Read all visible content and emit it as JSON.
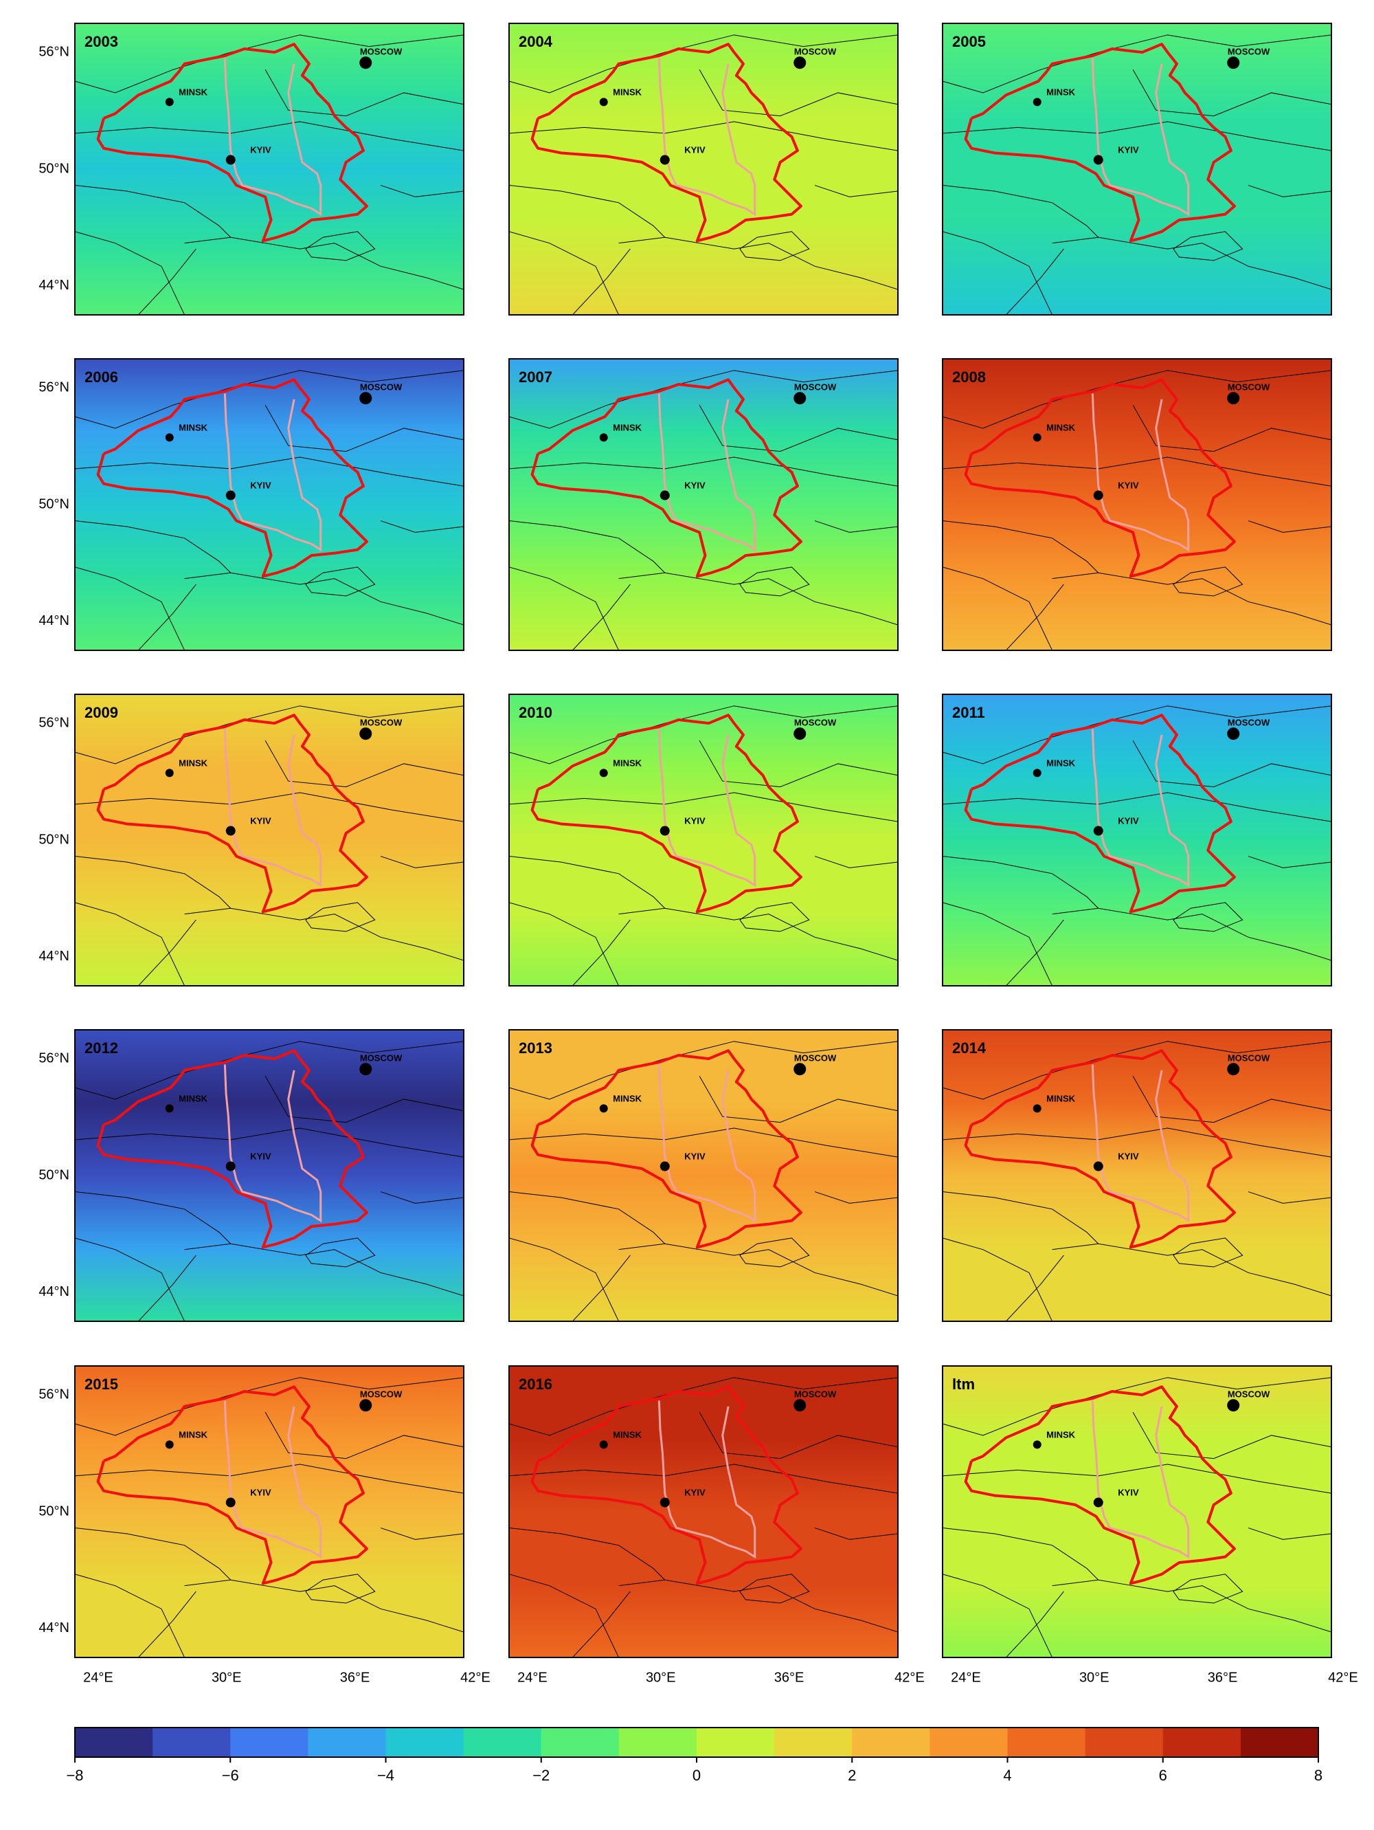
{
  "panels": [
    {
      "label": "2003",
      "colors": [
        "#55ef78",
        "#2bdda0",
        "#22c7d4",
        "#2bdda0",
        "#55ef78"
      ]
    },
    {
      "label": "2004",
      "colors": [
        "#90f54a",
        "#c7f23a",
        "#c7f23a",
        "#e9d83a"
      ]
    },
    {
      "label": "2005",
      "colors": [
        "#55ef78",
        "#2bdda0",
        "#2bdda0",
        "#22c7d4"
      ]
    },
    {
      "label": "2006",
      "colors": [
        "#3a4fc0",
        "#36a3f0",
        "#22c7d4",
        "#2bdda0",
        "#55ef78"
      ]
    },
    {
      "label": "2007",
      "colors": [
        "#36a3f0",
        "#2bdda0",
        "#55ef78",
        "#90f54a",
        "#c7f23a"
      ]
    },
    {
      "label": "2008",
      "colors": [
        "#c22a10",
        "#dd4818",
        "#ee6a20",
        "#f7962e",
        "#f5b83a"
      ]
    },
    {
      "label": "2009",
      "colors": [
        "#e9d83a",
        "#f5b83a",
        "#f5b83a",
        "#e9d83a",
        "#c7f23a"
      ]
    },
    {
      "label": "2010",
      "colors": [
        "#55ef78",
        "#90f54a",
        "#c7f23a",
        "#c7f23a",
        "#90f54a"
      ]
    },
    {
      "label": "2011",
      "colors": [
        "#36a3f0",
        "#22c7d4",
        "#2bdda0",
        "#55ef78",
        "#90f54a"
      ]
    },
    {
      "label": "2012",
      "colors": [
        "#3a4fc0",
        "#2c2c80",
        "#3a4fc0",
        "#36a3f0",
        "#2bdda0"
      ]
    },
    {
      "label": "2013",
      "colors": [
        "#f5b83a",
        "#f5b83a",
        "#f7962e",
        "#f5b83a",
        "#e9d83a"
      ]
    },
    {
      "label": "2014",
      "colors": [
        "#dd4818",
        "#ee6a20",
        "#f5b83a",
        "#e9d83a",
        "#e9d83a"
      ]
    },
    {
      "label": "2015",
      "colors": [
        "#ee6a20",
        "#f7962e",
        "#f5b83a",
        "#e9d83a",
        "#e9d83a"
      ]
    },
    {
      "label": "2016",
      "colors": [
        "#c22a10",
        "#c22a10",
        "#dd4818",
        "#dd4818",
        "#ee6a20"
      ]
    },
    {
      "label": "ltm",
      "colors": [
        "#e9d83a",
        "#c7f23a",
        "#c7f23a",
        "#c7f23a",
        "#90f54a"
      ]
    }
  ],
  "cities": {
    "minsk": "MINSK",
    "kyiv": "KYIV",
    "moscow": "MOSCOW"
  },
  "lat_labels": [
    "56°N",
    "50°N",
    "44°N"
  ],
  "lon_labels": [
    "24°E",
    "30°E",
    "36°E",
    "42°E"
  ],
  "colorbar": {
    "colors": [
      "#2c2c80",
      "#3a4fc0",
      "#3f7af0",
      "#36a3f0",
      "#22c7d4",
      "#2bdda0",
      "#55ef78",
      "#90f54a",
      "#c7f23a",
      "#e9d83a",
      "#f5b83a",
      "#f7962e",
      "#ee6a20",
      "#dd4818",
      "#c22a10",
      "#8c1008"
    ],
    "range": [
      -8,
      8
    ],
    "ticks": [
      {
        "value": -8,
        "label": "−8"
      },
      {
        "value": -6,
        "label": "−6"
      },
      {
        "value": -4,
        "label": "−4"
      },
      {
        "value": -2,
        "label": "−2"
      },
      0,
      2,
      4,
      6,
      8
    ]
  }
}
